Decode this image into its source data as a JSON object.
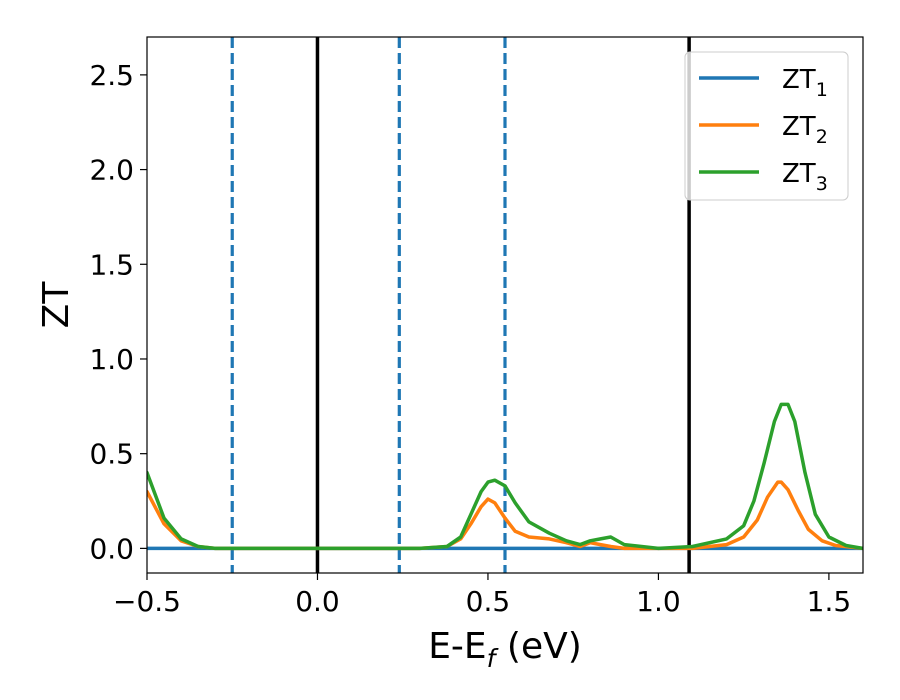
{
  "chart_data": {
    "type": "line",
    "xlabel": "E-E",
    "xlabel_sub": "f",
    "xlabel_unit": " (eV)",
    "ylabel": "ZT",
    "xlim": [
      -0.5,
      1.6
    ],
    "ylim": [
      -0.13,
      2.7
    ],
    "x_ticks": [
      -0.5,
      0.0,
      0.5,
      1.0,
      1.5
    ],
    "x_tick_labels": [
      "−0.5",
      "0.0",
      "0.5",
      "1.0",
      "1.5"
    ],
    "y_ticks": [
      0.0,
      0.5,
      1.0,
      1.5,
      2.0,
      2.5
    ],
    "y_tick_labels": [
      "0.0",
      "0.5",
      "1.0",
      "1.5",
      "2.0",
      "2.5"
    ],
    "grid": false,
    "legend_position": "top-right",
    "colors": {
      "zt1": "#1f77b4",
      "zt2": "#ff7f0e",
      "zt3": "#2ca02c",
      "vline": "#000000"
    },
    "series": [
      {
        "name": "ZT",
        "name_sub": "1",
        "color": "#1f77b4",
        "x": [
          -0.5,
          1.6
        ],
        "y": [
          0.0,
          0.0
        ]
      },
      {
        "name": "ZT",
        "name_sub": "2",
        "color": "#ff7f0e",
        "x": [
          -0.5,
          -0.45,
          -0.4,
          -0.35,
          -0.3,
          -0.25,
          0.0,
          0.3,
          0.38,
          0.42,
          0.45,
          0.48,
          0.5,
          0.52,
          0.55,
          0.58,
          0.62,
          0.68,
          0.73,
          0.77,
          0.8,
          0.83,
          0.86,
          0.9,
          1.0,
          1.1,
          1.2,
          1.25,
          1.29,
          1.32,
          1.35,
          1.36,
          1.38,
          1.41,
          1.44,
          1.48,
          1.52,
          1.6
        ],
        "y": [
          0.3,
          0.13,
          0.04,
          0.01,
          0.0,
          0.0,
          0.0,
          0.0,
          0.01,
          0.05,
          0.13,
          0.22,
          0.26,
          0.24,
          0.16,
          0.09,
          0.06,
          0.05,
          0.03,
          0.01,
          0.03,
          0.02,
          0.01,
          0.0,
          0.0,
          0.0,
          0.02,
          0.06,
          0.15,
          0.27,
          0.35,
          0.35,
          0.31,
          0.2,
          0.1,
          0.04,
          0.015,
          0.0
        ]
      },
      {
        "name": "ZT",
        "name_sub": "3",
        "color": "#2ca02c",
        "x": [
          -0.5,
          -0.45,
          -0.4,
          -0.35,
          -0.3,
          -0.25,
          0.0,
          0.3,
          0.38,
          0.42,
          0.45,
          0.48,
          0.5,
          0.52,
          0.55,
          0.58,
          0.62,
          0.68,
          0.73,
          0.77,
          0.8,
          0.83,
          0.86,
          0.9,
          1.0,
          1.1,
          1.2,
          1.25,
          1.28,
          1.31,
          1.34,
          1.36,
          1.38,
          1.4,
          1.43,
          1.46,
          1.5,
          1.55,
          1.6
        ],
        "y": [
          0.4,
          0.16,
          0.05,
          0.01,
          0.0,
          0.0,
          0.0,
          0.0,
          0.01,
          0.06,
          0.18,
          0.3,
          0.35,
          0.36,
          0.33,
          0.24,
          0.14,
          0.08,
          0.04,
          0.02,
          0.04,
          0.05,
          0.06,
          0.02,
          0.0,
          0.01,
          0.05,
          0.12,
          0.25,
          0.45,
          0.67,
          0.76,
          0.76,
          0.67,
          0.4,
          0.18,
          0.06,
          0.015,
          0.0
        ]
      }
    ],
    "vlines": [
      {
        "x": -0.25,
        "style": "dashed",
        "color": "#1f77b4"
      },
      {
        "x": 0.0,
        "style": "solid",
        "color": "#000000"
      },
      {
        "x": 0.24,
        "style": "dashed",
        "color": "#1f77b4"
      },
      {
        "x": 0.55,
        "style": "dashed",
        "color": "#1f77b4"
      },
      {
        "x": 1.09,
        "style": "solid",
        "color": "#000000"
      }
    ]
  }
}
